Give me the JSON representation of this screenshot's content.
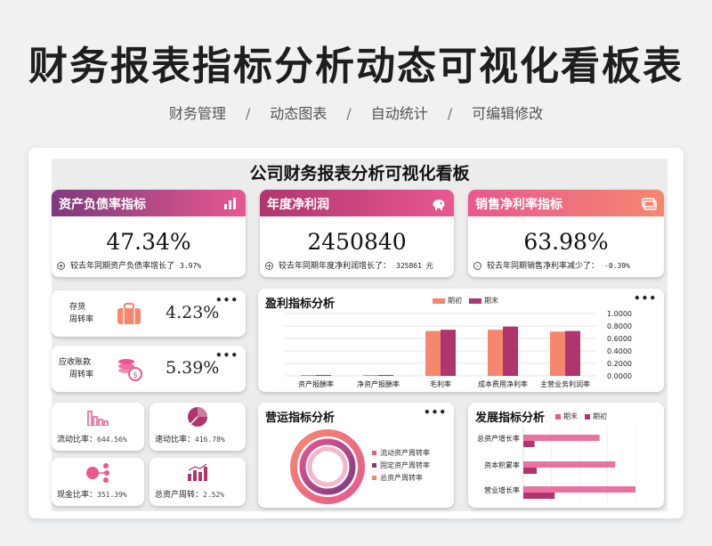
{
  "hero": {
    "title": "财务报表指标分析动态可视化看板表"
  },
  "tags": [
    "财务管理",
    "动态图表",
    "自动统计",
    "可编辑修改"
  ],
  "tag_sep": "/",
  "dashboard": {
    "title": "公司财务报表分析可视化看板"
  },
  "kpis": [
    {
      "title": "资产负债率指标",
      "value": "47.34%",
      "sign": "+",
      "desc": "较去年同期资产负债率增长了",
      "change": "3.97%"
    },
    {
      "title": "年度净利润",
      "value": "2450840",
      "sign": "+",
      "desc": "较去年同期年度净利润增长了：",
      "change": "325861 元"
    },
    {
      "title": "销售净利率指标",
      "value": "63.98%",
      "sign": "-",
      "desc": "较去年同期销售净利率减少了：",
      "change": "-0.39%"
    }
  ],
  "turnover": [
    {
      "label_1": "存货",
      "label_2": "周转率",
      "value": "4.23%",
      "icon": "briefcase-icon"
    },
    {
      "label_1": "应收账款",
      "label_2": "周转率",
      "value": "5.39%",
      "icon": "coins-icon"
    }
  ],
  "minis": [
    {
      "label": "流动比率：",
      "value": "644.56%",
      "icon": "bar-chart-icon"
    },
    {
      "label": "速动比率：",
      "value": "416.78%",
      "icon": "pie-chart-icon"
    },
    {
      "label": "现金比率：",
      "value": "351.39%",
      "icon": "network-icon"
    },
    {
      "label": "总资产周转：",
      "value": "2.52%",
      "icon": "growth-chart-icon"
    }
  ],
  "more_label": "•••",
  "colors": {
    "salmon": "#f5876e",
    "plum": "#b0356e",
    "pink": "#e8588f",
    "purple": "#7d3a7e"
  },
  "chart_data": [
    {
      "type": "bar",
      "title": "盈利指标分析",
      "categories": [
        "资产报酬率",
        "净资产报酬率",
        "毛利率",
        "成本费用净利率",
        "主营业务利润率"
      ],
      "series": [
        {
          "name": "期初",
          "values": [
            0.01,
            0.01,
            0.72,
            0.74,
            0.71
          ]
        },
        {
          "name": "期末",
          "values": [
            0.01,
            0.01,
            0.74,
            0.79,
            0.72
          ]
        }
      ],
      "yticks": [
        "1.0000",
        "0.8000",
        "0.6000",
        "0.4000",
        "0.2000",
        "0.0000"
      ],
      "ylim": [
        0,
        1
      ],
      "legend": "top"
    },
    {
      "type": "pie",
      "title": "营运指标分析",
      "labels": [
        "流动资产周转率",
        "固定资产周转率",
        "总资产周转率"
      ],
      "legend": "right"
    },
    {
      "type": "bar",
      "orientation": "horizontal",
      "title": "发展指标分析",
      "categories": [
        "总资产增长率",
        "资本积累率",
        "营业增长率"
      ],
      "series": [
        {
          "name": "期末",
          "values": [
            0.68,
            0.82,
            1.0
          ]
        },
        {
          "name": "期初",
          "values": [
            0.1,
            0.12,
            0.28
          ]
        }
      ],
      "legend": "top"
    }
  ]
}
